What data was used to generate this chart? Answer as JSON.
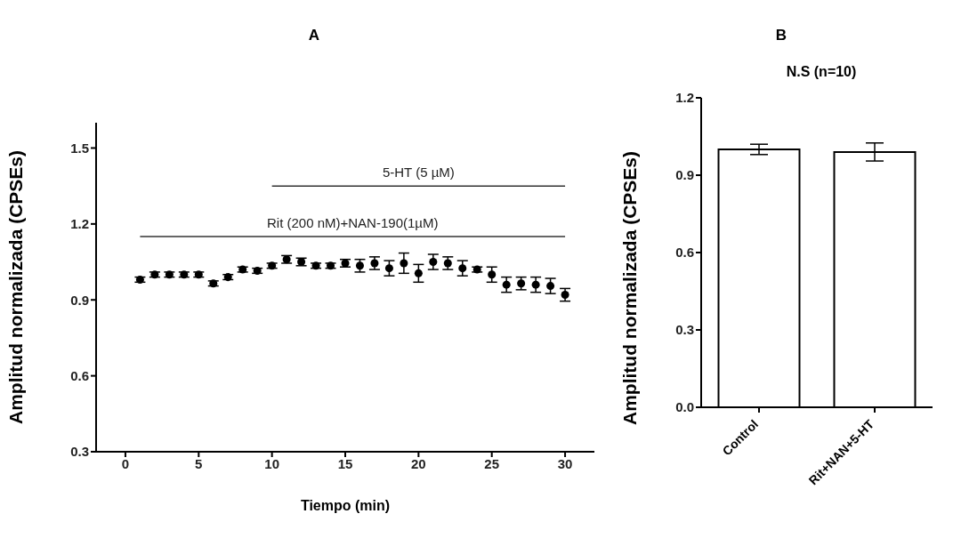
{
  "chart_data": [
    {
      "type": "scatter",
      "title": "A",
      "xlabel": "Tiempo (min)",
      "ylabel": "Amplitud normalizada (CPSEs)",
      "x": [
        1,
        2,
        3,
        4,
        5,
        6,
        7,
        8,
        9,
        10,
        11,
        12,
        13,
        14,
        15,
        16,
        17,
        18,
        19,
        20,
        21,
        22,
        23,
        24,
        25,
        26,
        27,
        28,
        29,
        30
      ],
      "series": [
        {
          "color": "#000000",
          "marker": "circle",
          "values": [
            0.98,
            1.0,
            1.0,
            1.0,
            1.0,
            0.965,
            0.99,
            1.02,
            1.015,
            1.035,
            1.06,
            1.05,
            1.035,
            1.035,
            1.045,
            1.035,
            1.045,
            1.025,
            1.045,
            1.005,
            1.05,
            1.045,
            1.025,
            1.02,
            1.0,
            0.96,
            0.965,
            0.96,
            0.955,
            0.92
          ],
          "errors": [
            0.01,
            0.01,
            0.01,
            0.01,
            0.01,
            0.01,
            0.01,
            0.01,
            0.01,
            0.01,
            0.015,
            0.015,
            0.01,
            0.01,
            0.015,
            0.025,
            0.025,
            0.03,
            0.04,
            0.035,
            0.03,
            0.025,
            0.03,
            0.01,
            0.03,
            0.03,
            0.025,
            0.03,
            0.03,
            0.025
          ]
        },
        {
          "type": "line",
          "name": "5-HT (5 µM)",
          "color": "#333333",
          "marker": "none",
          "x": [
            10,
            30
          ],
          "values": [
            1.35,
            1.35
          ]
        },
        {
          "type": "line",
          "name": "Rit (200 nM)+NAN-190(1µM)",
          "color": "#333333",
          "marker": "none",
          "x": [
            1,
            30
          ],
          "values": [
            1.15,
            1.15
          ]
        }
      ],
      "xlim": [
        -2,
        32
      ],
      "xticks": [
        0,
        5,
        10,
        15,
        20,
        25,
        30
      ],
      "ylim": [
        0.3,
        1.6
      ],
      "yticks": [
        0.3,
        0.6,
        0.9,
        1.2,
        1.5
      ]
    },
    {
      "type": "bar",
      "title": "B",
      "ylabel": "Amplitud normalizada (CPSEs)",
      "annotations": [
        "N.S (n=10)"
      ],
      "categories": [
        "Control",
        "Rit+NAN+5-HT"
      ],
      "values": [
        1.0,
        0.99
      ],
      "errors": [
        0.02,
        0.035
      ],
      "colors": [
        "#ffffff",
        "#ffffff"
      ],
      "ylim": [
        0,
        1.2
      ],
      "yticks": [
        {
          "value": 0,
          "label": "0.0"
        },
        0.3,
        0.6,
        0.9,
        1.2
      ]
    }
  ]
}
